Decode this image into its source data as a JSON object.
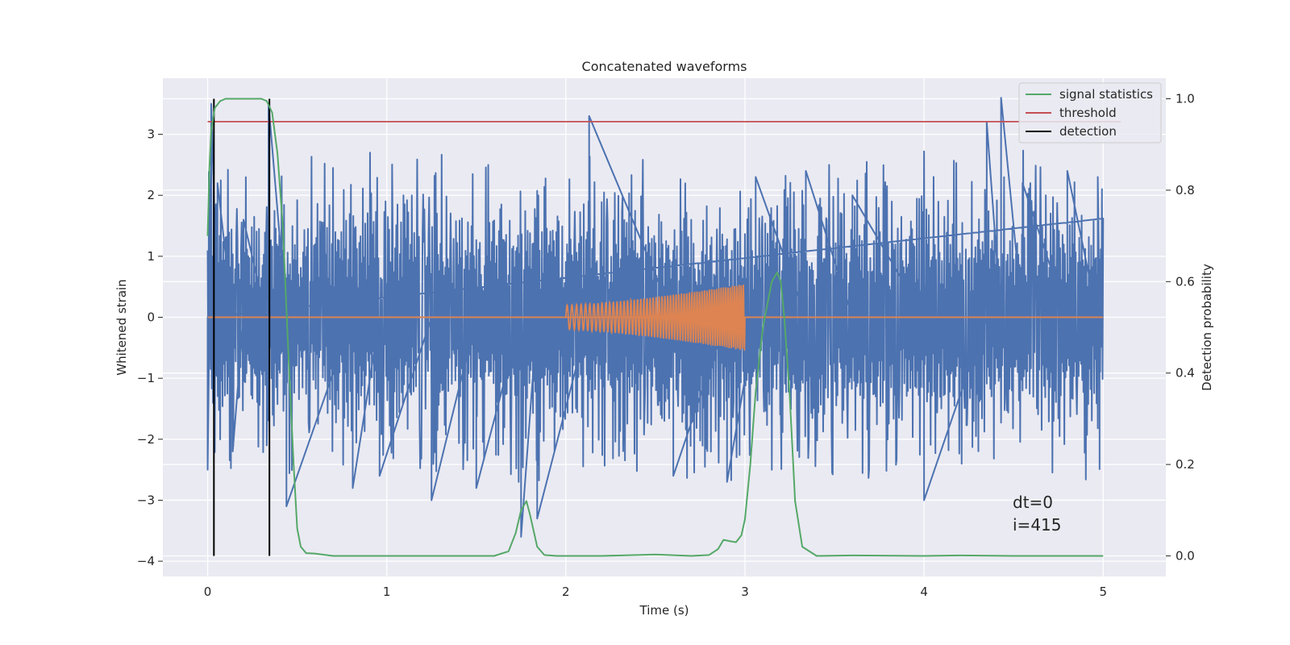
{
  "chart_data": {
    "type": "line",
    "title": "Concatenated waveforms",
    "xlabel": "Time (s)",
    "ylabel": "Whitened strain",
    "y2label": "Detection probability",
    "xlim": [
      -0.25,
      5.35
    ],
    "ylim": [
      -4.25,
      3.92
    ],
    "y2lim": [
      -0.045,
      1.045
    ],
    "x_ticks": [
      "0",
      "1",
      "2",
      "3",
      "4",
      "5"
    ],
    "y_ticks": [
      "3",
      "2",
      "1",
      "0",
      "−1",
      "−2",
      "−3",
      "−4"
    ],
    "y2_ticks": [
      "1.0",
      "0.8",
      "0.6",
      "0.4",
      "0.2",
      "0.0"
    ],
    "grid": true,
    "legend_position": "top-right",
    "legend": [
      "signal statistics",
      "threshold",
      "detection"
    ],
    "series": [
      {
        "name": "",
        "axis": "left",
        "kind": "noise",
        "color": "#4c72b0",
        "x_range": [
          0,
          5
        ],
        "y_range": [
          -3.2,
          3.6
        ],
        "spikes": [
          {
            "x": 0.0,
            "y": -2.5
          },
          {
            "x": 0.01,
            "y": 2.4
          },
          {
            "x": 0.02,
            "y": 3.5
          },
          {
            "x": 0.055,
            "y": 2.2
          },
          {
            "x": 0.14,
            "y": -2.2
          },
          {
            "x": 0.2,
            "y": 1.6
          },
          {
            "x": 0.33,
            "y": -2.1
          },
          {
            "x": 0.34,
            "y": 3.5
          },
          {
            "x": 0.44,
            "y": -3.1
          },
          {
            "x": 0.81,
            "y": -2.8
          },
          {
            "x": 0.96,
            "y": -2.6
          },
          {
            "x": 1.25,
            "y": -3.0
          },
          {
            "x": 1.5,
            "y": -2.8
          },
          {
            "x": 1.75,
            "y": -3.6
          },
          {
            "x": 1.84,
            "y": -3.3
          },
          {
            "x": 2.13,
            "y": 3.3
          },
          {
            "x": 2.6,
            "y": -2.6
          },
          {
            "x": 2.9,
            "y": -2.7
          },
          {
            "x": 3.06,
            "y": 2.3
          },
          {
            "x": 3.34,
            "y": 2.4
          },
          {
            "x": 3.6,
            "y": 2.0
          },
          {
            "x": 4.0,
            "y": -3.0
          },
          {
            "x": 4.35,
            "y": 3.2
          },
          {
            "x": 4.43,
            "y": 3.6
          },
          {
            "x": 4.55,
            "y": 2.2
          },
          {
            "x": 4.8,
            "y": 2.4
          },
          {
            "x": 4.97,
            "y": 2.3
          },
          {
            "x": 4.98,
            "y": -2.5
          }
        ]
      },
      {
        "name": "",
        "axis": "left",
        "kind": "chirp",
        "color": "#dd8452",
        "x_range": [
          2.0,
          3.0
        ],
        "amplitude_start": 0.2,
        "amplitude_end": 0.55,
        "baseline": 0
      },
      {
        "name": "signal statistics",
        "axis": "right",
        "color": "#55a868",
        "x": [
          0,
          0.01,
          0.02,
          0.04,
          0.07,
          0.1,
          0.2,
          0.3,
          0.33,
          0.36,
          0.39,
          0.42,
          0.45,
          0.48,
          0.5,
          0.52,
          0.55,
          0.6,
          0.7,
          1.0,
          1.6,
          1.68,
          1.72,
          1.75,
          1.78,
          1.8,
          1.84,
          1.88,
          1.95,
          2.2,
          2.5,
          2.7,
          2.8,
          2.85,
          2.88,
          2.92,
          2.95,
          2.98,
          3.0,
          3.03,
          3.06,
          3.1,
          3.15,
          3.18,
          3.2,
          3.22,
          3.25,
          3.28,
          3.32,
          3.4,
          3.6,
          4.0,
          4.2,
          4.5,
          5.0
        ],
        "values": [
          0.7,
          0.85,
          0.93,
          0.98,
          0.995,
          1.0,
          1.0,
          1.0,
          0.995,
          0.97,
          0.88,
          0.72,
          0.45,
          0.2,
          0.06,
          0.02,
          0.006,
          0.005,
          0.0,
          0.0,
          0.0,
          0.01,
          0.05,
          0.1,
          0.12,
          0.09,
          0.02,
          0.002,
          0.0,
          0.0,
          0.003,
          0.0,
          0.002,
          0.015,
          0.035,
          0.032,
          0.03,
          0.045,
          0.08,
          0.2,
          0.36,
          0.5,
          0.6,
          0.62,
          0.6,
          0.52,
          0.35,
          0.12,
          0.02,
          0.0,
          0.001,
          0.0,
          0.001,
          0.0,
          0.0
        ]
      },
      {
        "name": "threshold",
        "axis": "right",
        "color": "#c44e52",
        "x": [
          0,
          5.1
        ],
        "values": [
          0.95,
          0.95
        ]
      }
    ],
    "detections": {
      "name": "detection",
      "color": "#000000",
      "x": [
        0.035,
        0.345
      ],
      "y2_range": [
        0.0,
        1.0
      ]
    },
    "annotations": [
      "dt=0",
      "i=415"
    ]
  }
}
